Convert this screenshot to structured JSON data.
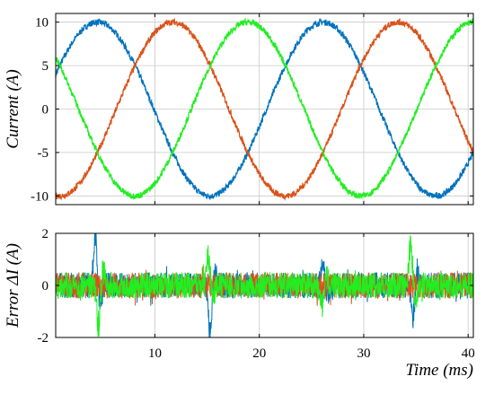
{
  "chart_data": [
    {
      "type": "line",
      "title": "",
      "ylabel": "Current (A)",
      "xlabel": "",
      "xlim": [
        0.5,
        40.5
      ],
      "ylim": [
        -11,
        11
      ],
      "y_ticks": [
        -10,
        -5,
        0,
        5,
        10
      ],
      "y_tick_labels": [
        "-10",
        "-5",
        "0",
        "5",
        "10"
      ],
      "grid": true,
      "legend": "none",
      "signal": {
        "amplitude": 10,
        "period_ms": 21.6,
        "noise_amplitude": 0.35
      },
      "series": [
        {
          "color": "#0072BD",
          "peaks_ms": [
            4.5,
            26.1
          ],
          "troughs_ms": [
            15.3,
            36.9
          ]
        },
        {
          "color": "#D95319",
          "peaks_ms": [
            11.7,
            33.3
          ],
          "troughs_ms": [
            0.9,
            22.5
          ]
        },
        {
          "color": "#22EE22",
          "peaks_ms": [
            18.9,
            40.5
          ],
          "troughs_ms": [
            8.1,
            29.7
          ]
        }
      ]
    },
    {
      "type": "line",
      "title": "",
      "ylabel": "Error ΔI (A)",
      "xlabel": "Time (ms)",
      "xlim": [
        0.5,
        40.5
      ],
      "ylim": [
        -2,
        2
      ],
      "x_ticks": [
        10,
        20,
        30,
        40
      ],
      "x_tick_labels": [
        "10",
        "20",
        "30",
        "40"
      ],
      "y_ticks": [
        -2,
        0,
        2
      ],
      "y_tick_labels": [
        "-2",
        "0",
        "2"
      ],
      "grid": true,
      "legend": "none",
      "signal": {
        "noise_amplitude": 0.5
      },
      "series": [
        {
          "color": "#0072BD",
          "spikes": [
            {
              "t_ms": 4.3,
              "peak": 2.0
            },
            {
              "t_ms": 15.3,
              "peak": -2.0
            },
            {
              "t_ms": 26.1,
              "peak": 1.0
            },
            {
              "t_ms": 34.7,
              "peak": -1.2
            }
          ]
        },
        {
          "color": "#D95319",
          "spikes": []
        },
        {
          "color": "#22EE22",
          "spikes": [
            {
              "t_ms": 4.6,
              "peak": -1.6
            },
            {
              "t_ms": 15.1,
              "peak": 1.1
            },
            {
              "t_ms": 26.0,
              "peak": -0.8
            },
            {
              "t_ms": 34.5,
              "peak": 1.6
            }
          ]
        }
      ]
    }
  ]
}
